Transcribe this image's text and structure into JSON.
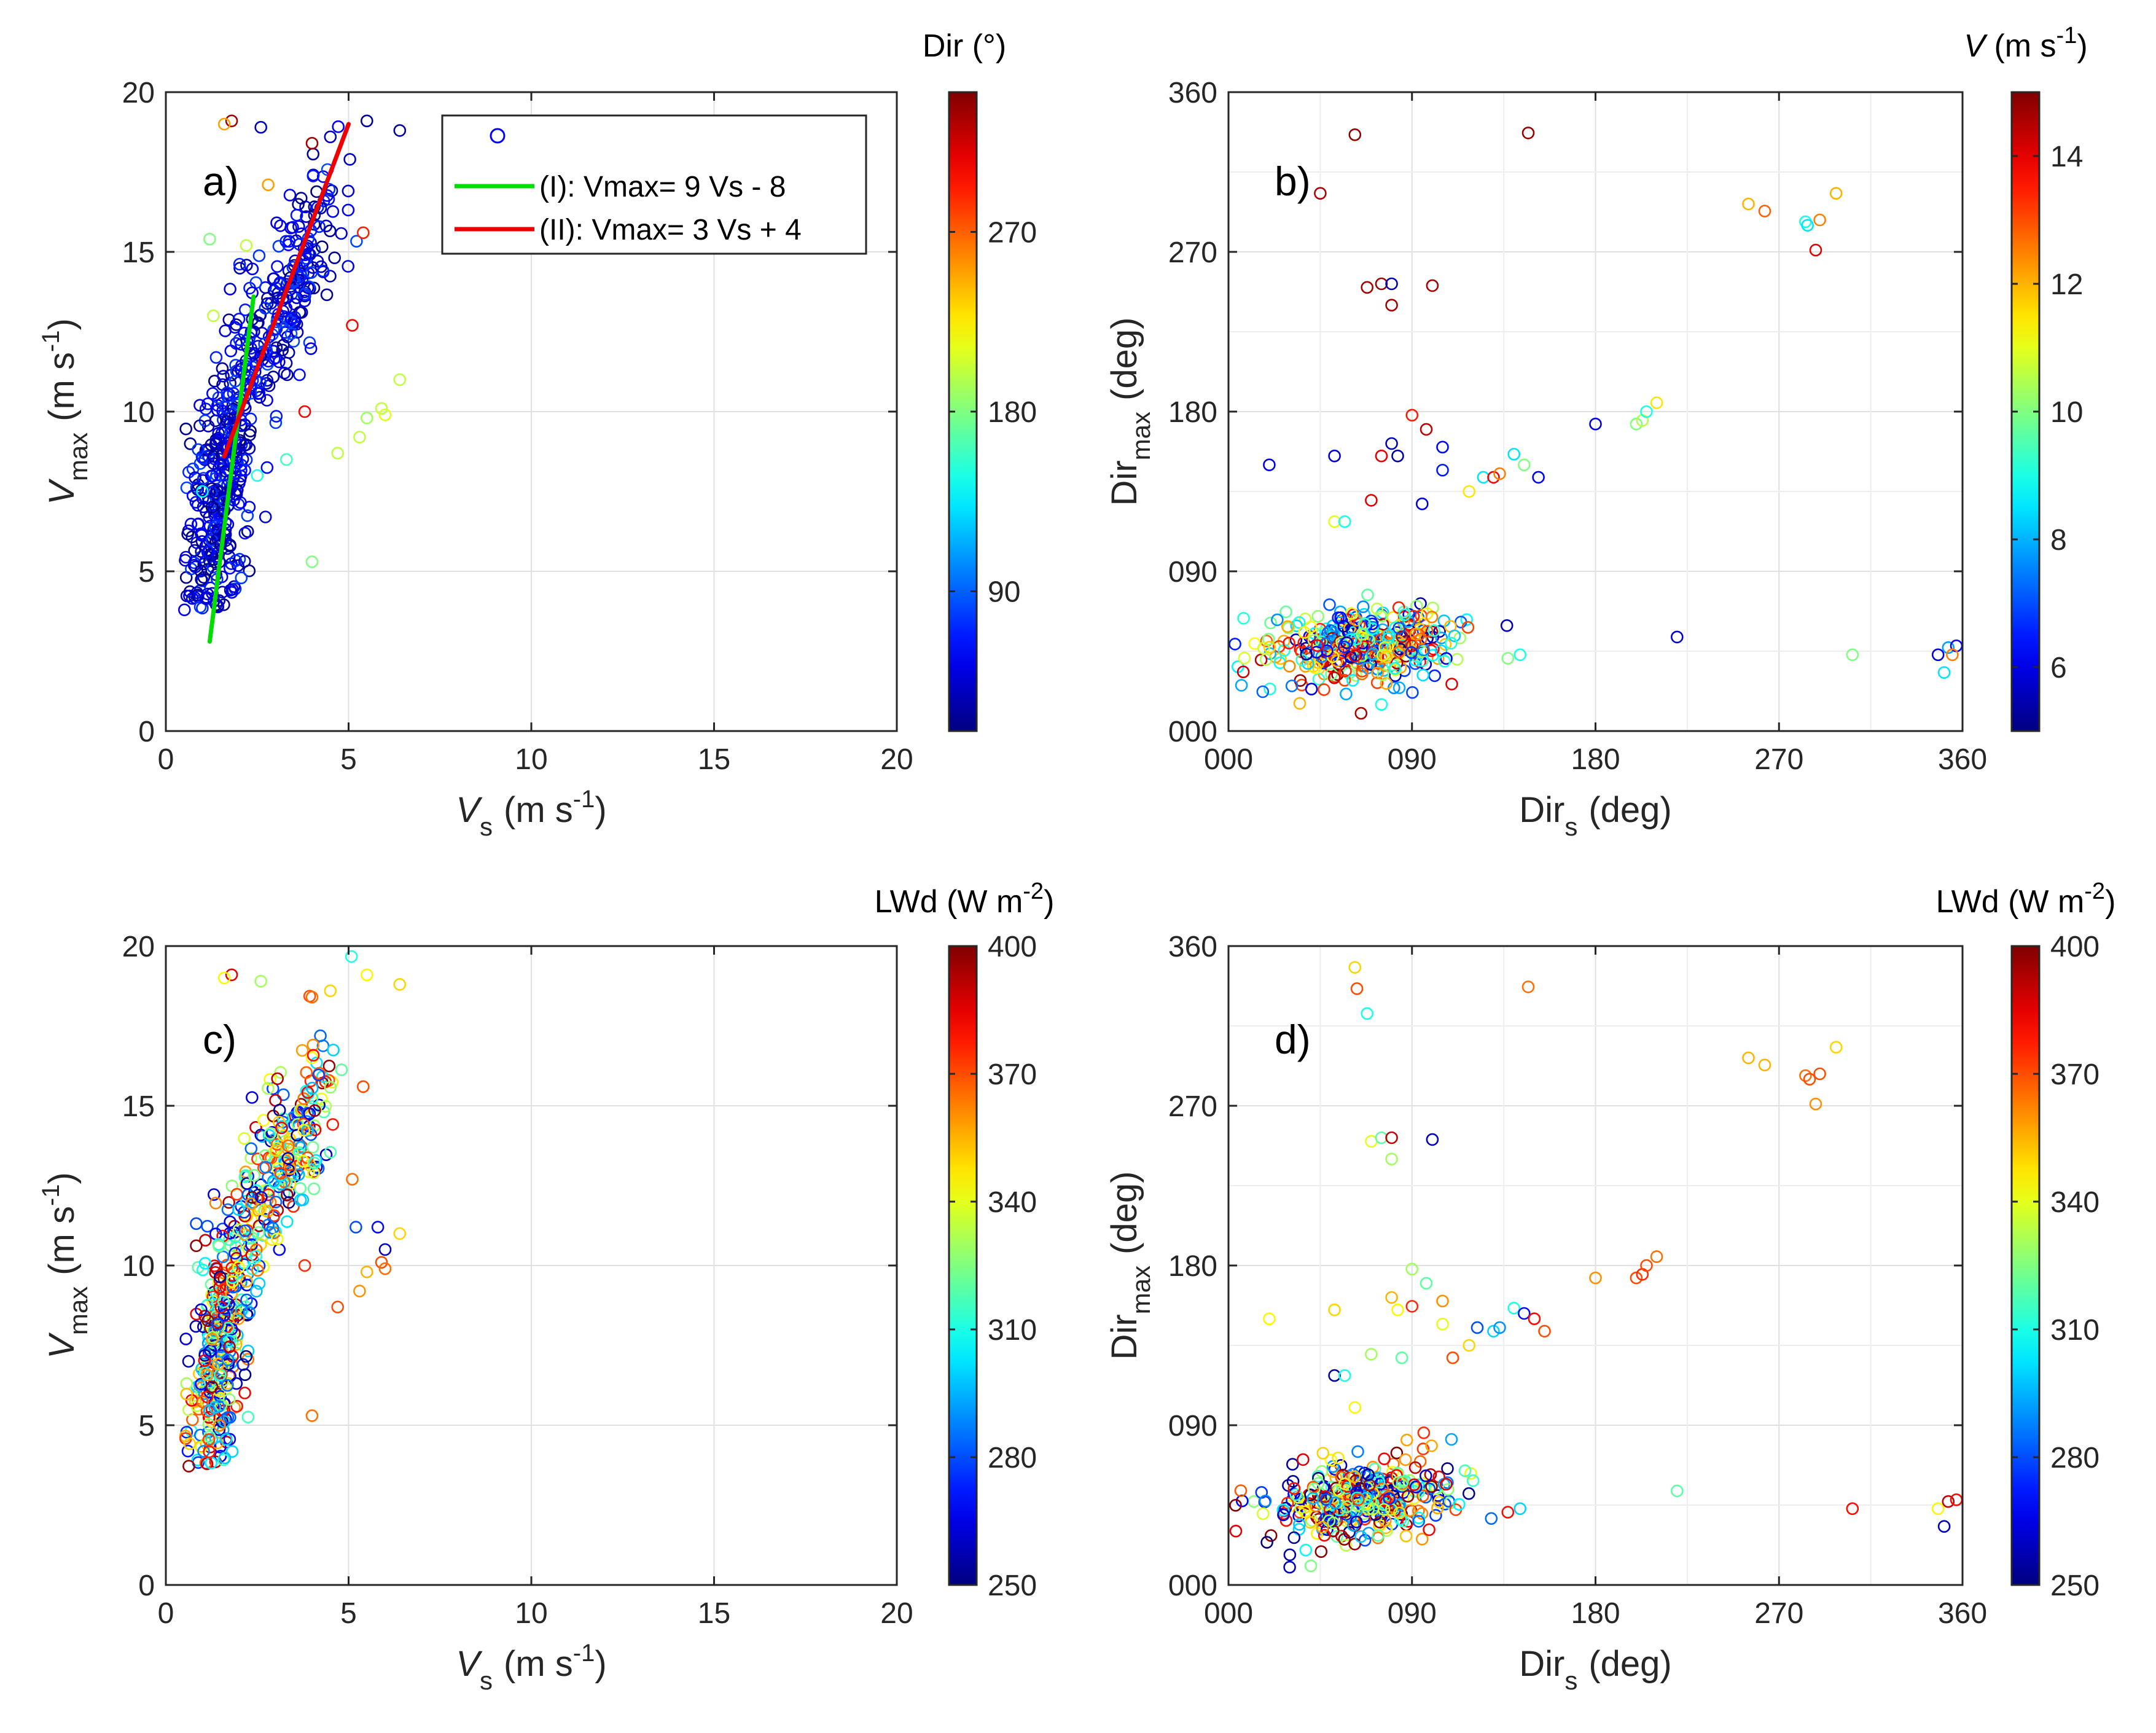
{
  "chart_data": [
    {
      "type": "scatter",
      "panel_label": "a)",
      "xlabel": {
        "base": "V",
        "sub": "s",
        "unit": "(m s",
        "sup": "-1",
        "close": ")"
      },
      "ylabel": {
        "base": "V",
        "sub": "max",
        "unit": "(m s",
        "sup": "-1",
        "close": ")"
      },
      "xlim": [
        0,
        20
      ],
      "ylim": [
        0,
        20
      ],
      "xticks": [
        "0",
        "5",
        "10",
        "15",
        "20"
      ],
      "yticks": [
        "0",
        "5",
        "10",
        "15",
        "20"
      ],
      "xtick_values": [
        0,
        5,
        10,
        15,
        20
      ],
      "ytick_values": [
        0,
        5,
        10,
        15,
        20
      ],
      "colorbar": {
        "title": "Dir (°)",
        "range": [
          20,
          340
        ],
        "ticks": [
          "90",
          "180",
          "270"
        ],
        "tick_values": [
          90,
          180,
          270
        ]
      },
      "legend": {
        "position": "top-right",
        "entries": [
          {
            "label": "",
            "kind": "marker"
          },
          {
            "label": "(I):  Vmax= 9 Vs - 8",
            "kind": "line",
            "color": "#00dd00"
          },
          {
            "label": "(II): Vmax= 3 Vs + 4",
            "kind": "line",
            "color": "#ee0000"
          }
        ]
      },
      "fit_lines": [
        {
          "x": [
            1.2,
            2.4
          ],
          "y": [
            2.8,
            13.6
          ],
          "color": "#00dd00"
        },
        {
          "x": [
            1.6,
            5.0
          ],
          "y": [
            8.6,
            19.0
          ],
          "color": "#ee0000"
        }
      ],
      "clusters": [
        {
          "cx": 1.5,
          "cy": 7.5,
          "sx": 0.45,
          "sy": 2.2,
          "n": 330,
          "corr": 0.5,
          "xmin": 0.5,
          "ymin": 3.7,
          "cmin": 20,
          "cmax": 80
        },
        {
          "cx": 3.2,
          "cy": 13.2,
          "sx": 0.75,
          "sy": 2.0,
          "n": 240,
          "corr": 0.75,
          "xmin": 1.3,
          "ymin": 8,
          "cmin": 20,
          "cmax": 85
        }
      ],
      "points": [
        {
          "x": 1.8,
          "y": 19.1,
          "c": 330
        },
        {
          "x": 1.6,
          "y": 19.0,
          "c": 250
        },
        {
          "x": 2.6,
          "y": 18.9,
          "c": 40
        },
        {
          "x": 4.0,
          "y": 18.4,
          "c": 330
        },
        {
          "x": 4.5,
          "y": 18.6,
          "c": 40
        },
        {
          "x": 5.5,
          "y": 19.1,
          "c": 30
        },
        {
          "x": 6.4,
          "y": 18.8,
          "c": 30
        },
        {
          "x": 2.8,
          "y": 17.1,
          "c": 250
        },
        {
          "x": 5.4,
          "y": 15.6,
          "c": 290
        },
        {
          "x": 5.1,
          "y": 12.7,
          "c": 300
        },
        {
          "x": 5.3,
          "y": 9.2,
          "c": 200
        },
        {
          "x": 5.5,
          "y": 9.8,
          "c": 190
        },
        {
          "x": 5.9,
          "y": 10.1,
          "c": 200
        },
        {
          "x": 6.0,
          "y": 9.9,
          "c": 210
        },
        {
          "x": 6.4,
          "y": 11.0,
          "c": 200
        },
        {
          "x": 4.7,
          "y": 8.7,
          "c": 200
        },
        {
          "x": 4.0,
          "y": 5.3,
          "c": 180
        },
        {
          "x": 3.8,
          "y": 10.0,
          "c": 300
        },
        {
          "x": 1.2,
          "y": 15.4,
          "c": 180
        },
        {
          "x": 2.2,
          "y": 15.2,
          "c": 200
        },
        {
          "x": 1.3,
          "y": 13.0,
          "c": 200
        },
        {
          "x": 3.3,
          "y": 8.5,
          "c": 160
        },
        {
          "x": 2.5,
          "y": 8.0,
          "c": 150
        },
        {
          "x": 1.0,
          "y": 7.5,
          "c": 140
        }
      ]
    },
    {
      "type": "scatter",
      "panel_label": "b)",
      "xlabel": {
        "base": "Dir",
        "sub": "s",
        "unit": "(deg)",
        "sup": "",
        "close": ""
      },
      "ylabel": {
        "base": "Dir",
        "sub": "max",
        "unit": "(deg)",
        "sup": "",
        "close": ""
      },
      "xlim": [
        0,
        360
      ],
      "ylim": [
        0,
        360
      ],
      "xticks": [
        "000",
        "090",
        "180",
        "270",
        "360"
      ],
      "yticks": [
        "000",
        "090",
        "180",
        "270",
        "360"
      ],
      "xtick_values": [
        0,
        90,
        180,
        270,
        360
      ],
      "ytick_values": [
        0,
        90,
        180,
        270,
        360
      ],
      "minor_grid": 45,
      "colorbar": {
        "title": "V (m s-1)",
        "range": [
          5,
          15
        ],
        "ticks": [
          "6",
          "8",
          "10",
          "12",
          "14"
        ],
        "tick_values": [
          6,
          8,
          10,
          12,
          14
        ]
      },
      "clusters": [
        {
          "cx": 65,
          "cy": 48,
          "sx": 22,
          "sy": 11,
          "n": 380,
          "corr": 0.1,
          "xmin": 3,
          "ymin": 10,
          "cmin": 5,
          "cmax": 15
        }
      ],
      "points": [
        {
          "x": 62,
          "y": 336,
          "c": 14.8
        },
        {
          "x": 147,
          "y": 337,
          "c": 14.8
        },
        {
          "x": 45,
          "y": 303,
          "c": 14.5
        },
        {
          "x": 68,
          "y": 250,
          "c": 14.6
        },
        {
          "x": 75,
          "y": 252,
          "c": 14.7
        },
        {
          "x": 80,
          "y": 252,
          "c": 5.5
        },
        {
          "x": 80,
          "y": 240,
          "c": 14.6
        },
        {
          "x": 100,
          "y": 251,
          "c": 14.6
        },
        {
          "x": 90,
          "y": 178,
          "c": 13.5
        },
        {
          "x": 97,
          "y": 170,
          "c": 14.4
        },
        {
          "x": 80,
          "y": 162,
          "c": 5.6
        },
        {
          "x": 83,
          "y": 155,
          "c": 5.5
        },
        {
          "x": 75,
          "y": 155,
          "c": 14.0
        },
        {
          "x": 52,
          "y": 155,
          "c": 5.8
        },
        {
          "x": 20,
          "y": 150,
          "c": 6.0
        },
        {
          "x": 105,
          "y": 160,
          "c": 6.3
        },
        {
          "x": 105,
          "y": 147,
          "c": 6.5
        },
        {
          "x": 125,
          "y": 143,
          "c": 8.5
        },
        {
          "x": 130,
          "y": 143,
          "c": 13.8
        },
        {
          "x": 133,
          "y": 145,
          "c": 12.5
        },
        {
          "x": 140,
          "y": 156,
          "c": 8.5
        },
        {
          "x": 145,
          "y": 150,
          "c": 10.0
        },
        {
          "x": 152,
          "y": 143,
          "c": 6.2
        },
        {
          "x": 118,
          "y": 135,
          "c": 11.5
        },
        {
          "x": 70,
          "y": 130,
          "c": 14.0
        },
        {
          "x": 95,
          "y": 128,
          "c": 6.0
        },
        {
          "x": 52,
          "y": 118,
          "c": 11.0
        },
        {
          "x": 57,
          "y": 118,
          "c": 9.0
        },
        {
          "x": 180,
          "y": 173,
          "c": 6.0
        },
        {
          "x": 200,
          "y": 173,
          "c": 10.0
        },
        {
          "x": 203,
          "y": 175,
          "c": 10.5
        },
        {
          "x": 205,
          "y": 180,
          "c": 9.0
        },
        {
          "x": 210,
          "y": 185,
          "c": 11.5
        },
        {
          "x": 255,
          "y": 297,
          "c": 12.0
        },
        {
          "x": 263,
          "y": 293,
          "c": 12.8
        },
        {
          "x": 283,
          "y": 287,
          "c": 9.0
        },
        {
          "x": 284,
          "y": 285,
          "c": 8.5
        },
        {
          "x": 290,
          "y": 288,
          "c": 12.5
        },
        {
          "x": 298,
          "y": 303,
          "c": 12.0
        },
        {
          "x": 288,
          "y": 271,
          "c": 14.0
        },
        {
          "x": 220,
          "y": 53,
          "c": 5.8
        },
        {
          "x": 348,
          "y": 43,
          "c": 6.0
        },
        {
          "x": 351,
          "y": 33,
          "c": 8.5
        },
        {
          "x": 353,
          "y": 47,
          "c": 7.8
        },
        {
          "x": 357,
          "y": 48,
          "c": 6.3
        },
        {
          "x": 355,
          "y": 43,
          "c": 12.5
        },
        {
          "x": 306,
          "y": 43,
          "c": 10.0
        },
        {
          "x": 143,
          "y": 43,
          "c": 9.0
        },
        {
          "x": 137,
          "y": 41,
          "c": 10.0
        },
        {
          "x": 65,
          "y": 10,
          "c": 14.6
        },
        {
          "x": 75,
          "y": 15,
          "c": 9.0
        }
      ]
    },
    {
      "type": "scatter",
      "panel_label": "c)",
      "xlabel": {
        "base": "V",
        "sub": "s",
        "unit": "(m s",
        "sup": "-1",
        "close": ")"
      },
      "ylabel": {
        "base": "V",
        "sub": "max",
        "unit": "(m s",
        "sup": "-1",
        "close": ")"
      },
      "xlim": [
        0,
        20
      ],
      "ylim": [
        0,
        20
      ],
      "xticks": [
        "0",
        "5",
        "10",
        "15",
        "20"
      ],
      "yticks": [
        "0",
        "5",
        "10",
        "15",
        "20"
      ],
      "xtick_values": [
        0,
        5,
        10,
        15,
        20
      ],
      "ytick_values": [
        0,
        5,
        10,
        15,
        20
      ],
      "colorbar": {
        "title": "LWd (W m-2)",
        "range": [
          250,
          400
        ],
        "ticks": [
          "250",
          "280",
          "310",
          "340",
          "370",
          "400"
        ],
        "tick_values": [
          250,
          280,
          310,
          340,
          370,
          400
        ]
      },
      "clusters": [
        {
          "cx": 1.5,
          "cy": 7.5,
          "sx": 0.45,
          "sy": 2.2,
          "n": 330,
          "corr": 0.5,
          "xmin": 0.5,
          "ymin": 3.7,
          "cmin": 250,
          "cmax": 400
        },
        {
          "cx": 3.2,
          "cy": 13.2,
          "sx": 0.75,
          "sy": 2.0,
          "n": 240,
          "corr": 0.75,
          "xmin": 1.3,
          "ymin": 8,
          "cmin": 250,
          "cmax": 400
        }
      ],
      "points": [
        {
          "x": 1.8,
          "y": 19.1,
          "c": 385
        },
        {
          "x": 1.6,
          "y": 19.0,
          "c": 345
        },
        {
          "x": 2.6,
          "y": 18.9,
          "c": 330
        },
        {
          "x": 4.0,
          "y": 18.4,
          "c": 365
        },
        {
          "x": 4.5,
          "y": 18.6,
          "c": 350
        },
        {
          "x": 5.5,
          "y": 19.1,
          "c": 345
        },
        {
          "x": 6.4,
          "y": 18.8,
          "c": 350
        },
        {
          "x": 5.4,
          "y": 15.6,
          "c": 370
        },
        {
          "x": 5.1,
          "y": 12.7,
          "c": 365
        },
        {
          "x": 5.5,
          "y": 9.8,
          "c": 355
        },
        {
          "x": 5.9,
          "y": 10.1,
          "c": 370
        },
        {
          "x": 6.0,
          "y": 9.9,
          "c": 365
        },
        {
          "x": 6.4,
          "y": 11.0,
          "c": 350
        },
        {
          "x": 6.0,
          "y": 10.5,
          "c": 260
        },
        {
          "x": 5.8,
          "y": 11.2,
          "c": 270
        },
        {
          "x": 5.2,
          "y": 11.2,
          "c": 280
        },
        {
          "x": 5.3,
          "y": 9.2,
          "c": 360
        },
        {
          "x": 4.7,
          "y": 8.7,
          "c": 370
        },
        {
          "x": 4.0,
          "y": 5.3,
          "c": 365
        },
        {
          "x": 3.8,
          "y": 10.0,
          "c": 375
        }
      ]
    },
    {
      "type": "scatter",
      "panel_label": "d)",
      "xlabel": {
        "base": "Dir",
        "sub": "s",
        "unit": "(deg)",
        "sup": "",
        "close": ""
      },
      "ylabel": {
        "base": "Dir",
        "sub": "max",
        "unit": "(deg)",
        "sup": "",
        "close": ""
      },
      "xlim": [
        0,
        360
      ],
      "ylim": [
        0,
        360
      ],
      "xticks": [
        "000",
        "090",
        "180",
        "270",
        "360"
      ],
      "yticks": [
        "000",
        "090",
        "180",
        "270",
        "360"
      ],
      "xtick_values": [
        0,
        90,
        180,
        270,
        360
      ],
      "ytick_values": [
        0,
        90,
        180,
        270,
        360
      ],
      "minor_grid": 45,
      "colorbar": {
        "title": "LWd (W m-2)",
        "range": [
          250,
          400
        ],
        "ticks": [
          "250",
          "280",
          "310",
          "340",
          "370",
          "400"
        ],
        "tick_values": [
          250,
          280,
          310,
          340,
          370,
          400
        ]
      },
      "clusters": [
        {
          "cx": 65,
          "cy": 48,
          "sx": 22,
          "sy": 11,
          "n": 380,
          "corr": 0.1,
          "xmin": 3,
          "ymin": 10,
          "cmin": 250,
          "cmax": 400
        }
      ],
      "points": [
        {
          "x": 62,
          "y": 348,
          "c": 350
        },
        {
          "x": 63,
          "y": 336,
          "c": 370
        },
        {
          "x": 68,
          "y": 322,
          "c": 310
        },
        {
          "x": 147,
          "y": 337,
          "c": 365
        },
        {
          "x": 70,
          "y": 250,
          "c": 340
        },
        {
          "x": 75,
          "y": 252,
          "c": 320
        },
        {
          "x": 80,
          "y": 252,
          "c": 390
        },
        {
          "x": 80,
          "y": 240,
          "c": 330
        },
        {
          "x": 100,
          "y": 251,
          "c": 260
        },
        {
          "x": 90,
          "y": 178,
          "c": 330
        },
        {
          "x": 97,
          "y": 170,
          "c": 320
        },
        {
          "x": 80,
          "y": 162,
          "c": 355
        },
        {
          "x": 83,
          "y": 155,
          "c": 345
        },
        {
          "x": 90,
          "y": 157,
          "c": 375
        },
        {
          "x": 52,
          "y": 155,
          "c": 350
        },
        {
          "x": 20,
          "y": 150,
          "c": 345
        },
        {
          "x": 105,
          "y": 160,
          "c": 360
        },
        {
          "x": 105,
          "y": 147,
          "c": 340
        },
        {
          "x": 122,
          "y": 145,
          "c": 280
        },
        {
          "x": 130,
          "y": 143,
          "c": 300
        },
        {
          "x": 133,
          "y": 145,
          "c": 290
        },
        {
          "x": 140,
          "y": 156,
          "c": 310
        },
        {
          "x": 145,
          "y": 153,
          "c": 270
        },
        {
          "x": 150,
          "y": 150,
          "c": 380
        },
        {
          "x": 155,
          "y": 143,
          "c": 370
        },
        {
          "x": 118,
          "y": 135,
          "c": 350
        },
        {
          "x": 70,
          "y": 130,
          "c": 330
        },
        {
          "x": 110,
          "y": 128,
          "c": 370
        },
        {
          "x": 52,
          "y": 118,
          "c": 255
        },
        {
          "x": 57,
          "y": 118,
          "c": 310
        },
        {
          "x": 85,
          "y": 128,
          "c": 320
        },
        {
          "x": 180,
          "y": 173,
          "c": 360
        },
        {
          "x": 200,
          "y": 173,
          "c": 370
        },
        {
          "x": 203,
          "y": 175,
          "c": 375
        },
        {
          "x": 205,
          "y": 180,
          "c": 370
        },
        {
          "x": 210,
          "y": 185,
          "c": 365
        },
        {
          "x": 255,
          "y": 297,
          "c": 355
        },
        {
          "x": 263,
          "y": 293,
          "c": 355
        },
        {
          "x": 283,
          "y": 287,
          "c": 365
        },
        {
          "x": 285,
          "y": 285,
          "c": 370
        },
        {
          "x": 290,
          "y": 288,
          "c": 370
        },
        {
          "x": 298,
          "y": 303,
          "c": 350
        },
        {
          "x": 288,
          "y": 271,
          "c": 360
        },
        {
          "x": 220,
          "y": 53,
          "c": 320
        },
        {
          "x": 348,
          "y": 43,
          "c": 345
        },
        {
          "x": 351,
          "y": 33,
          "c": 260
        },
        {
          "x": 353,
          "y": 47,
          "c": 390
        },
        {
          "x": 357,
          "y": 48,
          "c": 380
        },
        {
          "x": 306,
          "y": 43,
          "c": 380
        },
        {
          "x": 143,
          "y": 43,
          "c": 300
        },
        {
          "x": 137,
          "y": 41,
          "c": 380
        },
        {
          "x": 30,
          "y": 10,
          "c": 260
        },
        {
          "x": 62,
          "y": 100,
          "c": 345
        }
      ]
    }
  ]
}
